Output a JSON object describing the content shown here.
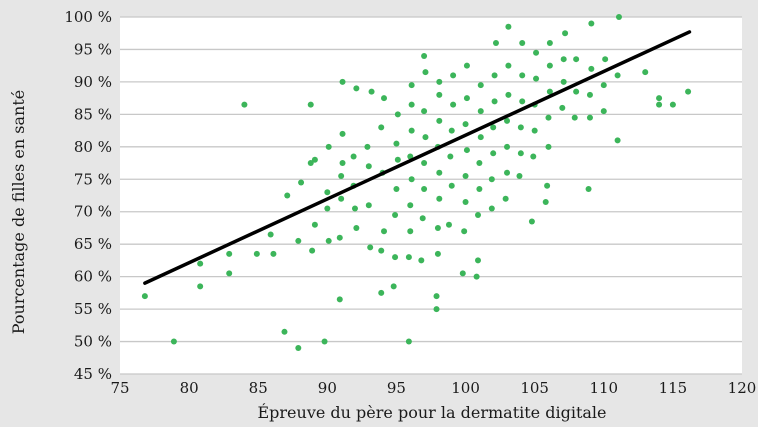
{
  "chart_data": {
    "type": "scatter",
    "xlabel": "Épreuve du père pour la dermatite digitale",
    "ylabel": "Pourcentage de filles en santé",
    "xlim": [
      75,
      120
    ],
    "ylim": [
      45,
      100
    ],
    "x_ticks": [
      75,
      80,
      85,
      90,
      95,
      100,
      105,
      110,
      115,
      120
    ],
    "y_ticks": [
      45,
      50,
      55,
      60,
      65,
      70,
      75,
      80,
      85,
      90,
      95,
      100
    ],
    "y_tick_labels": [
      "45 %",
      "50 %",
      "55 %",
      "60 %",
      "65 %",
      "70 %",
      "75 %",
      "80 %",
      "85 %",
      "90 %",
      "95 %",
      "100 %"
    ],
    "x_tick_labels": [
      "75",
      "80",
      "85",
      "90",
      "95",
      "100",
      "105",
      "110",
      "115",
      "120"
    ],
    "grid": true,
    "point_color": "#3cb55a",
    "trendline_color": "#000000",
    "plot_background": "#ffffff",
    "gridline_color": "#c8c8c8",
    "trendline": {
      "x": [
        76.8,
        116.2
      ],
      "y": [
        59,
        97.7
      ]
    },
    "points": [
      [
        76.8,
        57
      ],
      [
        78.9,
        50
      ],
      [
        80.8,
        58.5
      ],
      [
        80.8,
        62
      ],
      [
        82.9,
        60.5
      ],
      [
        82.9,
        63.5
      ],
      [
        84.0,
        86.5
      ],
      [
        84.9,
        63.5
      ],
      [
        86.1,
        63.5
      ],
      [
        85.9,
        66.5
      ],
      [
        86.9,
        51.5
      ],
      [
        87.1,
        72.5
      ],
      [
        87.9,
        49
      ],
      [
        87.9,
        65.5
      ],
      [
        88.1,
        74.5
      ],
      [
        88.9,
        64
      ],
      [
        89.1,
        68
      ],
      [
        88.8,
        77.5
      ],
      [
        88.8,
        86.5
      ],
      [
        89.1,
        78
      ],
      [
        89.8,
        50
      ],
      [
        90.0,
        70.5
      ],
      [
        90.1,
        65.5
      ],
      [
        90.1,
        80
      ],
      [
        90.0,
        73
      ],
      [
        90.9,
        56.5
      ],
      [
        90.9,
        66
      ],
      [
        91.0,
        72
      ],
      [
        91.0,
        75.5
      ],
      [
        91.1,
        77.5
      ],
      [
        91.1,
        82
      ],
      [
        91.1,
        90
      ],
      [
        91.9,
        78.5
      ],
      [
        91.9,
        74
      ],
      [
        92.0,
        70.5
      ],
      [
        92.1,
        67.5
      ],
      [
        92.1,
        89
      ],
      [
        92.9,
        80
      ],
      [
        93.0,
        77
      ],
      [
        93.0,
        71
      ],
      [
        93.1,
        64.5
      ],
      [
        93.2,
        88.5
      ],
      [
        93.9,
        57.5
      ],
      [
        93.9,
        64
      ],
      [
        94.1,
        67
      ],
      [
        94.0,
        76
      ],
      [
        93.9,
        83
      ],
      [
        94.1,
        87.5
      ],
      [
        94.8,
        58.5
      ],
      [
        94.9,
        63
      ],
      [
        94.9,
        69.5
      ],
      [
        95.0,
        73.5
      ],
      [
        95.1,
        78
      ],
      [
        95.0,
        80.5
      ],
      [
        95.1,
        85
      ],
      [
        95.9,
        50
      ],
      [
        95.9,
        63
      ],
      [
        96.0,
        67
      ],
      [
        96.0,
        71
      ],
      [
        96.1,
        75
      ],
      [
        96.0,
        78.5
      ],
      [
        96.1,
        82.5
      ],
      [
        96.1,
        86.5
      ],
      [
        96.1,
        89.5
      ],
      [
        96.8,
        62.5
      ],
      [
        96.9,
        69
      ],
      [
        97.0,
        73.5
      ],
      [
        97.0,
        77.5
      ],
      [
        97.1,
        81.5
      ],
      [
        97.0,
        85.5
      ],
      [
        97.1,
        91.5
      ],
      [
        97.0,
        94
      ],
      [
        97.9,
        55
      ],
      [
        97.9,
        57
      ],
      [
        98.0,
        63.5
      ],
      [
        98.0,
        67.5
      ],
      [
        98.1,
        72
      ],
      [
        98.1,
        76
      ],
      [
        98.0,
        80
      ],
      [
        98.1,
        84
      ],
      [
        98.1,
        88
      ],
      [
        98.1,
        90
      ],
      [
        98.8,
        68
      ],
      [
        99.0,
        74
      ],
      [
        98.9,
        78.5
      ],
      [
        99.0,
        82.5
      ],
      [
        99.1,
        86.5
      ],
      [
        99.1,
        91
      ],
      [
        99.8,
        60.5
      ],
      [
        99.9,
        67
      ],
      [
        100.0,
        71.5
      ],
      [
        100.0,
        75.5
      ],
      [
        100.1,
        79.5
      ],
      [
        100.0,
        83.5
      ],
      [
        100.1,
        87.5
      ],
      [
        100.1,
        92.5
      ],
      [
        100.8,
        60
      ],
      [
        100.9,
        62.5
      ],
      [
        100.9,
        69.5
      ],
      [
        101.0,
        73.5
      ],
      [
        101.0,
        77.5
      ],
      [
        101.1,
        81.5
      ],
      [
        101.1,
        85.5
      ],
      [
        101.1,
        89.5
      ],
      [
        101.9,
        70.5
      ],
      [
        101.9,
        75
      ],
      [
        102.0,
        79
      ],
      [
        102.0,
        83
      ],
      [
        102.1,
        87
      ],
      [
        102.1,
        91
      ],
      [
        102.2,
        96
      ],
      [
        102.9,
        72
      ],
      [
        103.0,
        76
      ],
      [
        103.0,
        80
      ],
      [
        103.0,
        84
      ],
      [
        103.1,
        88
      ],
      [
        103.1,
        92.5
      ],
      [
        103.1,
        98.5
      ],
      [
        103.9,
        75.5
      ],
      [
        104.0,
        79
      ],
      [
        104.0,
        83
      ],
      [
        104.1,
        87
      ],
      [
        104.1,
        91
      ],
      [
        104.1,
        96
      ],
      [
        104.8,
        68.5
      ],
      [
        104.9,
        78.5
      ],
      [
        105.0,
        82.5
      ],
      [
        105.0,
        86.5
      ],
      [
        105.1,
        90.5
      ],
      [
        105.1,
        94.5
      ],
      [
        105.8,
        71.5
      ],
      [
        105.9,
        74
      ],
      [
        106.0,
        80
      ],
      [
        106.0,
        84.5
      ],
      [
        106.1,
        88.5
      ],
      [
        106.1,
        92.5
      ],
      [
        106.1,
        96
      ],
      [
        107.0,
        86
      ],
      [
        107.1,
        90
      ],
      [
        107.1,
        93.5
      ],
      [
        107.2,
        97.5
      ],
      [
        107.9,
        84.5
      ],
      [
        108.0,
        88.5
      ],
      [
        108.0,
        93.5
      ],
      [
        108.9,
        73.5
      ],
      [
        109.0,
        84.5
      ],
      [
        109.0,
        88
      ],
      [
        109.1,
        92
      ],
      [
        109.1,
        99
      ],
      [
        110.0,
        85.5
      ],
      [
        110.0,
        89.5
      ],
      [
        110.1,
        93.5
      ],
      [
        111.0,
        81
      ],
      [
        111.0,
        91
      ],
      [
        111.1,
        100
      ],
      [
        113.0,
        91.5
      ],
      [
        114.0,
        86.5
      ],
      [
        114.0,
        87.5
      ],
      [
        115.0,
        86.5
      ],
      [
        116.1,
        88.5
      ]
    ]
  }
}
